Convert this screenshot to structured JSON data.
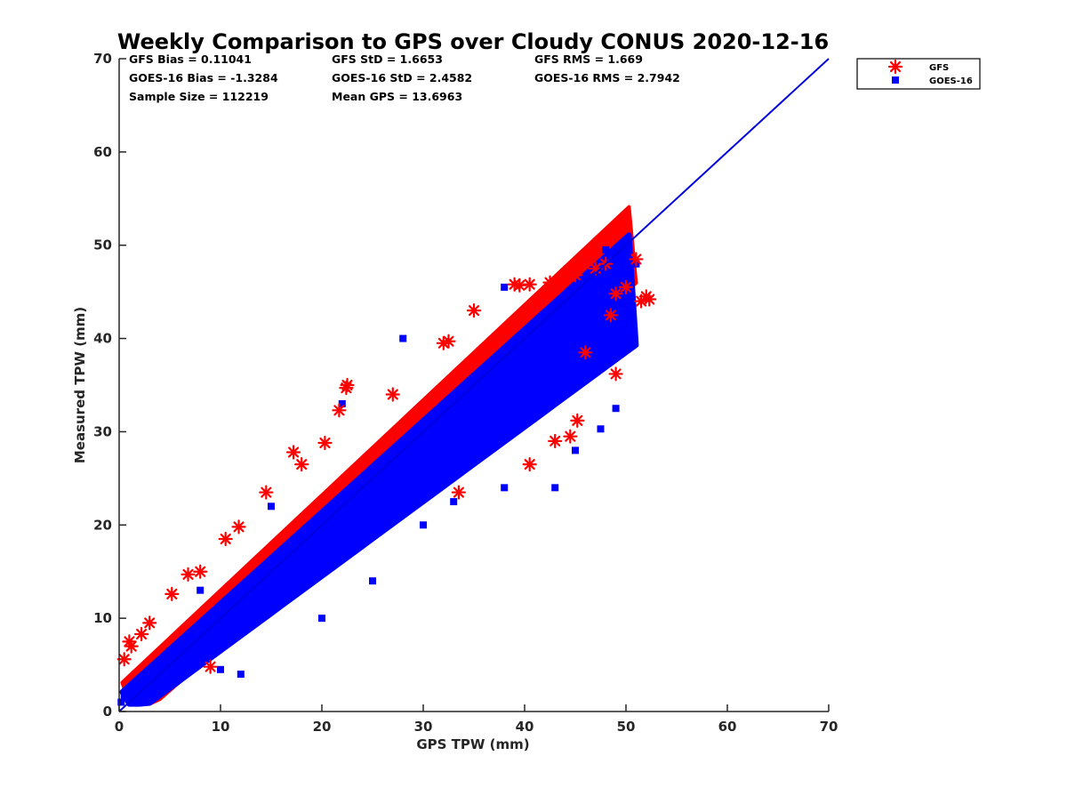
{
  "chart_data": {
    "type": "scatter",
    "title": "Weekly Comparison to GPS over Cloudy CONUS 2020-12-16",
    "xlabel": "GPS TPW (mm)",
    "ylabel": "Measured TPW (mm)",
    "xlim": [
      0,
      70
    ],
    "ylim": [
      0,
      70
    ],
    "xticks": [
      "0",
      "10",
      "20",
      "30",
      "40",
      "50",
      "60",
      "70"
    ],
    "yticks": [
      "0",
      "10",
      "20",
      "30",
      "40",
      "50",
      "60",
      "70"
    ],
    "grid": false,
    "legend_position": "outside top-right",
    "stats": [
      [
        "GFS Bias = 0.11041",
        "GFS StD = 1.6653",
        "GFS RMS = 1.669"
      ],
      [
        "GOES-16 Bias = -1.3284",
        "GOES-16 StD = 2.4582",
        "GOES-16 RMS = 2.7942"
      ],
      [
        "Sample Size = 112219",
        "Mean GPS = 13.6963",
        ""
      ]
    ],
    "reference_line": {
      "name": "1:1 line",
      "x": [
        0,
        70
      ],
      "y": [
        0,
        70
      ],
      "color": "#0000dd"
    },
    "series": [
      {
        "name": "GFS",
        "marker": "asterisk",
        "color": "#ff0000",
        "points": [
          [
            0.5,
            5.6
          ],
          [
            1.0,
            7.5
          ],
          [
            1.2,
            7.0
          ],
          [
            2.2,
            8.3
          ],
          [
            3.0,
            9.5
          ],
          [
            5.2,
            12.6
          ],
          [
            6.8,
            14.7
          ],
          [
            8.0,
            15.0
          ],
          [
            9.0,
            4.8
          ],
          [
            10.5,
            18.5
          ],
          [
            11.8,
            19.8
          ],
          [
            14.5,
            23.5
          ],
          [
            17.2,
            27.8
          ],
          [
            18.0,
            26.5
          ],
          [
            20.3,
            28.8
          ],
          [
            21.7,
            32.3
          ],
          [
            22.4,
            34.7
          ],
          [
            22.5,
            35.0
          ],
          [
            27.0,
            34.0
          ],
          [
            32.0,
            39.5
          ],
          [
            32.5,
            39.7
          ],
          [
            35.0,
            43.0
          ],
          [
            33.5,
            23.5
          ],
          [
            39.0,
            45.8
          ],
          [
            39.5,
            45.7
          ],
          [
            40.5,
            45.8
          ],
          [
            42.5,
            46.0
          ],
          [
            43.0,
            29.0
          ],
          [
            44.5,
            29.5
          ],
          [
            45.0,
            46.8
          ],
          [
            45.2,
            31.2
          ],
          [
            40.5,
            26.5
          ],
          [
            46.0,
            38.5
          ],
          [
            47.0,
            47.5
          ],
          [
            48.0,
            48.0
          ],
          [
            48.5,
            42.5
          ],
          [
            49.0,
            36.2
          ],
          [
            49.0,
            44.8
          ],
          [
            50.0,
            45.5
          ],
          [
            51.0,
            48.5
          ],
          [
            51.5,
            44.0
          ],
          [
            52.0,
            44.5
          ],
          [
            52.3,
            44.2
          ]
        ]
      },
      {
        "name": "GOES-16",
        "marker": "square",
        "color": "#0000ff",
        "points": [
          [
            0.2,
            1.0
          ],
          [
            0.5,
            1.5
          ],
          [
            1.0,
            2.0
          ],
          [
            1.5,
            2.5
          ],
          [
            2.0,
            3.0
          ],
          [
            2.5,
            2.0
          ],
          [
            3.0,
            4.0
          ],
          [
            3.5,
            3.0
          ],
          [
            4.0,
            5.0
          ],
          [
            5.0,
            4.0
          ],
          [
            5.0,
            6.5
          ],
          [
            6.0,
            5.0
          ],
          [
            7.0,
            7.5
          ],
          [
            8.0,
            6.5
          ],
          [
            9.0,
            9.0
          ],
          [
            10.0,
            8.5
          ],
          [
            11.0,
            10.0
          ],
          [
            12.0,
            11.5
          ],
          [
            13.0,
            12.0
          ],
          [
            14.0,
            13.5
          ],
          [
            15.0,
            14.5
          ],
          [
            16.0,
            15.0
          ],
          [
            17.0,
            16.5
          ],
          [
            18.0,
            17.0
          ],
          [
            19.0,
            18.5
          ],
          [
            20.0,
            19.0
          ],
          [
            21.0,
            20.5
          ],
          [
            22.0,
            21.0
          ],
          [
            23.0,
            22.5
          ],
          [
            24.0,
            23.0
          ],
          [
            25.0,
            24.5
          ],
          [
            26.0,
            25.0
          ],
          [
            27.0,
            26.5
          ],
          [
            28.0,
            27.5
          ],
          [
            29.0,
            28.0
          ],
          [
            30.0,
            29.5
          ],
          [
            31.0,
            30.0
          ],
          [
            32.0,
            31.0
          ],
          [
            33.0,
            32.5
          ],
          [
            34.0,
            33.0
          ],
          [
            35.0,
            34.5
          ],
          [
            36.0,
            35.0
          ],
          [
            37.0,
            36.0
          ],
          [
            38.0,
            37.5
          ],
          [
            39.0,
            38.0
          ],
          [
            40.0,
            39.0
          ],
          [
            41.0,
            40.0
          ],
          [
            42.0,
            41.0
          ],
          [
            43.0,
            42.0
          ],
          [
            44.0,
            43.0
          ],
          [
            45.0,
            44.0
          ],
          [
            46.0,
            44.5
          ],
          [
            47.0,
            45.5
          ],
          [
            48.0,
            46.0
          ],
          [
            49.0,
            47.0
          ],
          [
            50.0,
            48.5
          ],
          [
            51.0,
            48.0
          ],
          [
            48.0,
            49.5
          ],
          [
            22.0,
            33.0
          ],
          [
            28.0,
            40.0
          ],
          [
            38.0,
            45.5
          ],
          [
            30.0,
            20.0
          ],
          [
            33.0,
            22.5
          ],
          [
            38.0,
            24.0
          ],
          [
            43.0,
            24.0
          ],
          [
            45.0,
            28.0
          ],
          [
            47.5,
            30.3
          ],
          [
            49.0,
            32.5
          ],
          [
            12.0,
            4.0
          ],
          [
            20.0,
            10.0
          ],
          [
            25.0,
            14.0
          ],
          [
            15.0,
            22.0
          ],
          [
            8.0,
            13.0
          ],
          [
            10.0,
            4.5
          ]
        ]
      }
    ]
  }
}
